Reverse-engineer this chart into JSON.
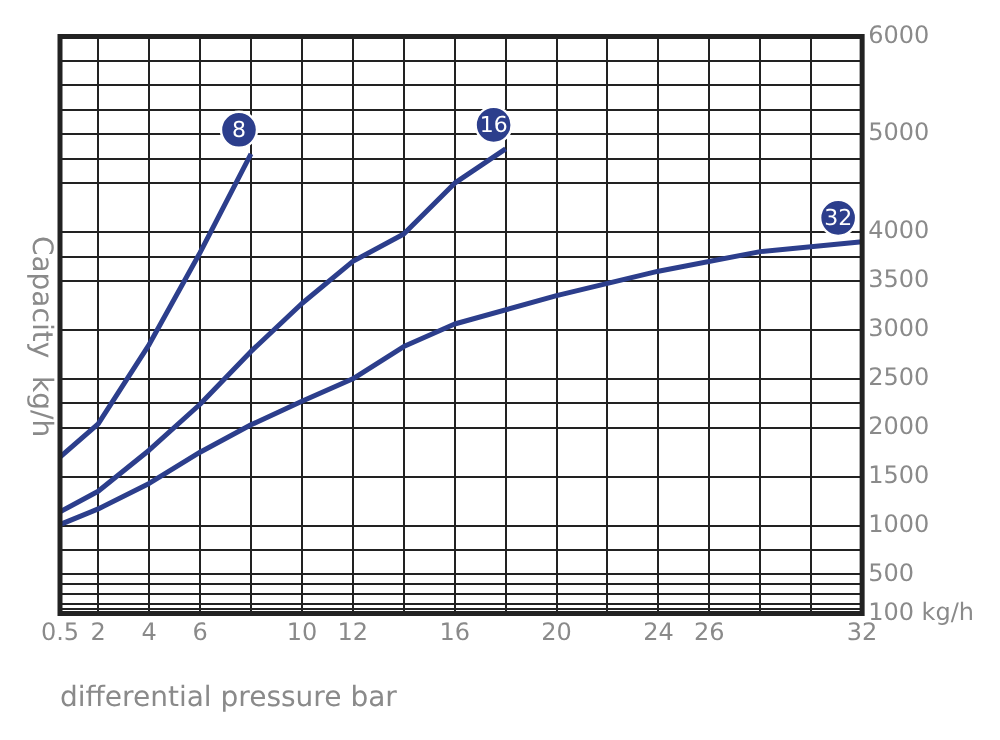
{
  "chart_data": {
    "type": "line",
    "xlabel": "differential pressure bar",
    "ylabel": "Capacity  kg/h",
    "series": [
      {
        "name": "8",
        "color": "#2c3e8c",
        "x": [
          0.5,
          2,
          4,
          6,
          8
        ],
        "values": [
          1700,
          2040,
          2850,
          3790,
          4800
        ]
      },
      {
        "name": "16",
        "color": "#2c3e8c",
        "x": [
          0.5,
          2,
          4,
          6,
          8,
          10,
          12,
          14,
          16,
          18
        ],
        "values": [
          1140,
          1350,
          1770,
          2240,
          2780,
          3270,
          3700,
          3980,
          4500,
          4850
        ]
      },
      {
        "name": "32",
        "color": "#2c3e8c",
        "x": [
          0.5,
          2,
          4,
          6,
          8,
          10,
          12,
          14,
          16,
          20,
          24,
          28,
          32
        ],
        "values": [
          1010,
          1170,
          1430,
          1750,
          2030,
          2270,
          2500,
          2830,
          3060,
          3350,
          3600,
          3800,
          3900
        ]
      }
    ],
    "xlim": [
      0.5,
      32
    ],
    "xticks": [
      0.5,
      2,
      4,
      6,
      {
        "value": 8,
        "label": null
      },
      10,
      12,
      {
        "value": 14,
        "label": null
      },
      16,
      {
        "value": 18,
        "label": null
      },
      20,
      {
        "value": 22,
        "label": null
      },
      24,
      26,
      {
        "value": 28,
        "label": null
      },
      {
        "value": 30,
        "label": null
      },
      32
    ],
    "ylim": [
      100,
      6000
    ],
    "yticks": [
      {
        "value": 100,
        "label": "100 kg/h"
      },
      {
        "value": 150,
        "label": null
      },
      {
        "value": 200,
        "label": null
      },
      {
        "value": 300,
        "label": null
      },
      {
        "value": 400,
        "label": null
      },
      500,
      {
        "value": 750,
        "label": null
      },
      1000,
      1500,
      2000,
      {
        "value": 2250,
        "label": null
      },
      2500,
      3000,
      3500,
      {
        "value": 3750,
        "label": null
      },
      4000,
      {
        "value": 4500,
        "label": null
      },
      {
        "value": 4750,
        "label": null
      },
      5000,
      {
        "value": 5250,
        "label": null
      },
      {
        "value": 5500,
        "label": null
      },
      {
        "value": 5750,
        "label": null
      },
      6000
    ],
    "grid": true,
    "legend": false,
    "marker": "none",
    "line_style": "solid"
  }
}
